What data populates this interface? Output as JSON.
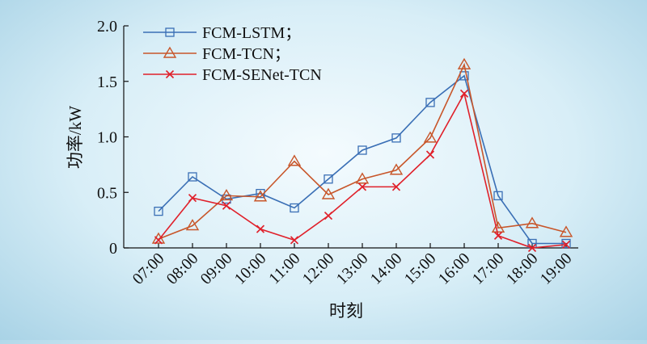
{
  "chart_data": {
    "type": "line",
    "title": "",
    "xlabel": "时刻",
    "ylabel": "功率/kW",
    "categories": [
      "07:00",
      "08:00",
      "09:00",
      "10:00",
      "11:00",
      "12:00",
      "13:00",
      "14:00",
      "15:00",
      "16:00",
      "17:00",
      "18:00",
      "19:00"
    ],
    "ylim": [
      0,
      2.0
    ],
    "yticks": [
      "0",
      "0.5",
      "1.0",
      "1.5",
      "2.0"
    ],
    "yticks_values": [
      0,
      0.5,
      1.0,
      1.5,
      2.0
    ],
    "grid": false,
    "legend_position": "top-left",
    "series": [
      {
        "name": "FCM-LSTM；",
        "color": "#3a6fb5",
        "marker": "square",
        "values": [
          0.33,
          0.64,
          0.44,
          0.49,
          0.36,
          0.62,
          0.88,
          0.99,
          1.31,
          1.55,
          0.47,
          0.04,
          0.04
        ]
      },
      {
        "name": "FCM-TCN；",
        "color": "#c8562a",
        "marker": "triangle",
        "values": [
          0.08,
          0.2,
          0.47,
          0.46,
          0.78,
          0.48,
          0.62,
          0.7,
          0.99,
          1.65,
          0.18,
          0.22,
          0.14
        ]
      },
      {
        "name": "FCM-SENet-TCN",
        "color": "#e0202a",
        "marker": "x",
        "values": [
          0.07,
          0.45,
          0.38,
          0.17,
          0.07,
          0.29,
          0.55,
          0.55,
          0.84,
          1.39,
          0.11,
          0.0,
          0.03
        ]
      }
    ]
  }
}
